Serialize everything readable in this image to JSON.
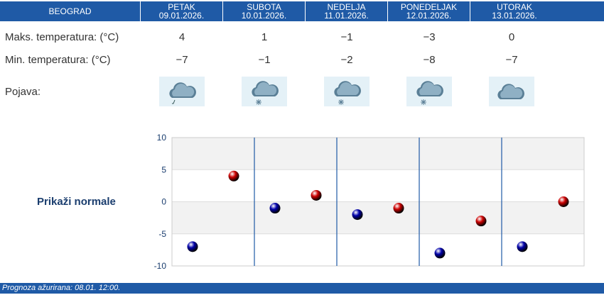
{
  "header": {
    "city": "BEOGRAD",
    "days": [
      {
        "name": "PETAK",
        "date": "09.01.2026."
      },
      {
        "name": "SUBOTA",
        "date": "10.01.2026."
      },
      {
        "name": "NEDELJA",
        "date": "11.01.2026."
      },
      {
        "name": "PONEDELJAK",
        "date": "12.01.2026."
      },
      {
        "name": "UTORAK",
        "date": "13.01.2026."
      }
    ]
  },
  "rows": {
    "max_label": "Maks. temperatura: (°C)",
    "max_values": [
      "4",
      "1",
      "−1",
      "−3",
      "0"
    ],
    "min_label": "Min. temperatura: (°C)",
    "min_values": [
      "−7",
      "−1",
      "−2",
      "−8",
      "−7"
    ],
    "pojava_label": "Pojava:",
    "pojava_icons": [
      "cloud-rain-icon",
      "cloud-snow-icon",
      "cloud-snow-icon",
      "cloud-snow-icon",
      "cloud-icon"
    ]
  },
  "normale_label": "Prikaži normale",
  "footer": "Prognoza ažurirana:  08.01. 12:00.",
  "colors": {
    "header_bg": "#1f5aa6",
    "max_dot": "#cc0000",
    "min_dot": "#0000aa",
    "divider": "#1f5aa6"
  },
  "chart_data": {
    "type": "scatter",
    "ylim": [
      -10,
      10
    ],
    "yticks": [
      "10",
      "5",
      "0",
      "-5",
      "-10"
    ],
    "grid": true,
    "categories": [
      "09.01.2026.",
      "10.01.2026.",
      "11.01.2026.",
      "12.01.2026.",
      "13.01.2026."
    ],
    "series": [
      {
        "values": [
          -7,
          -1,
          -2,
          -8,
          -7
        ],
        "color": "#0000aa"
      },
      {
        "values": [
          4,
          1,
          -1,
          -3,
          0
        ],
        "color": "#cc0000"
      }
    ]
  }
}
